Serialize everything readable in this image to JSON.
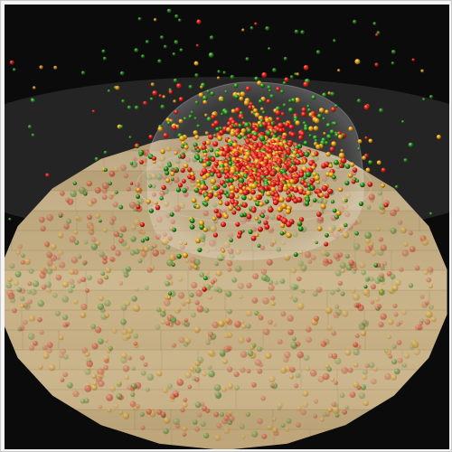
{
  "scene": {
    "description_free": true,
    "background_color": "#0a0a0a",
    "floor_material": "wood-planks",
    "colors": {
      "wood_light": "#cfb98f",
      "wood_mid": "#b89f72",
      "wood_dark": "#9a8258",
      "sphere_red": "#e0241a",
      "sphere_orange": "#e8a215",
      "sphere_green": "#2d8f1f",
      "glass_dome": "#9a9a9a"
    },
    "particle_kinds": [
      "red-sphere",
      "orange-sphere",
      "green-sphere"
    ]
  }
}
